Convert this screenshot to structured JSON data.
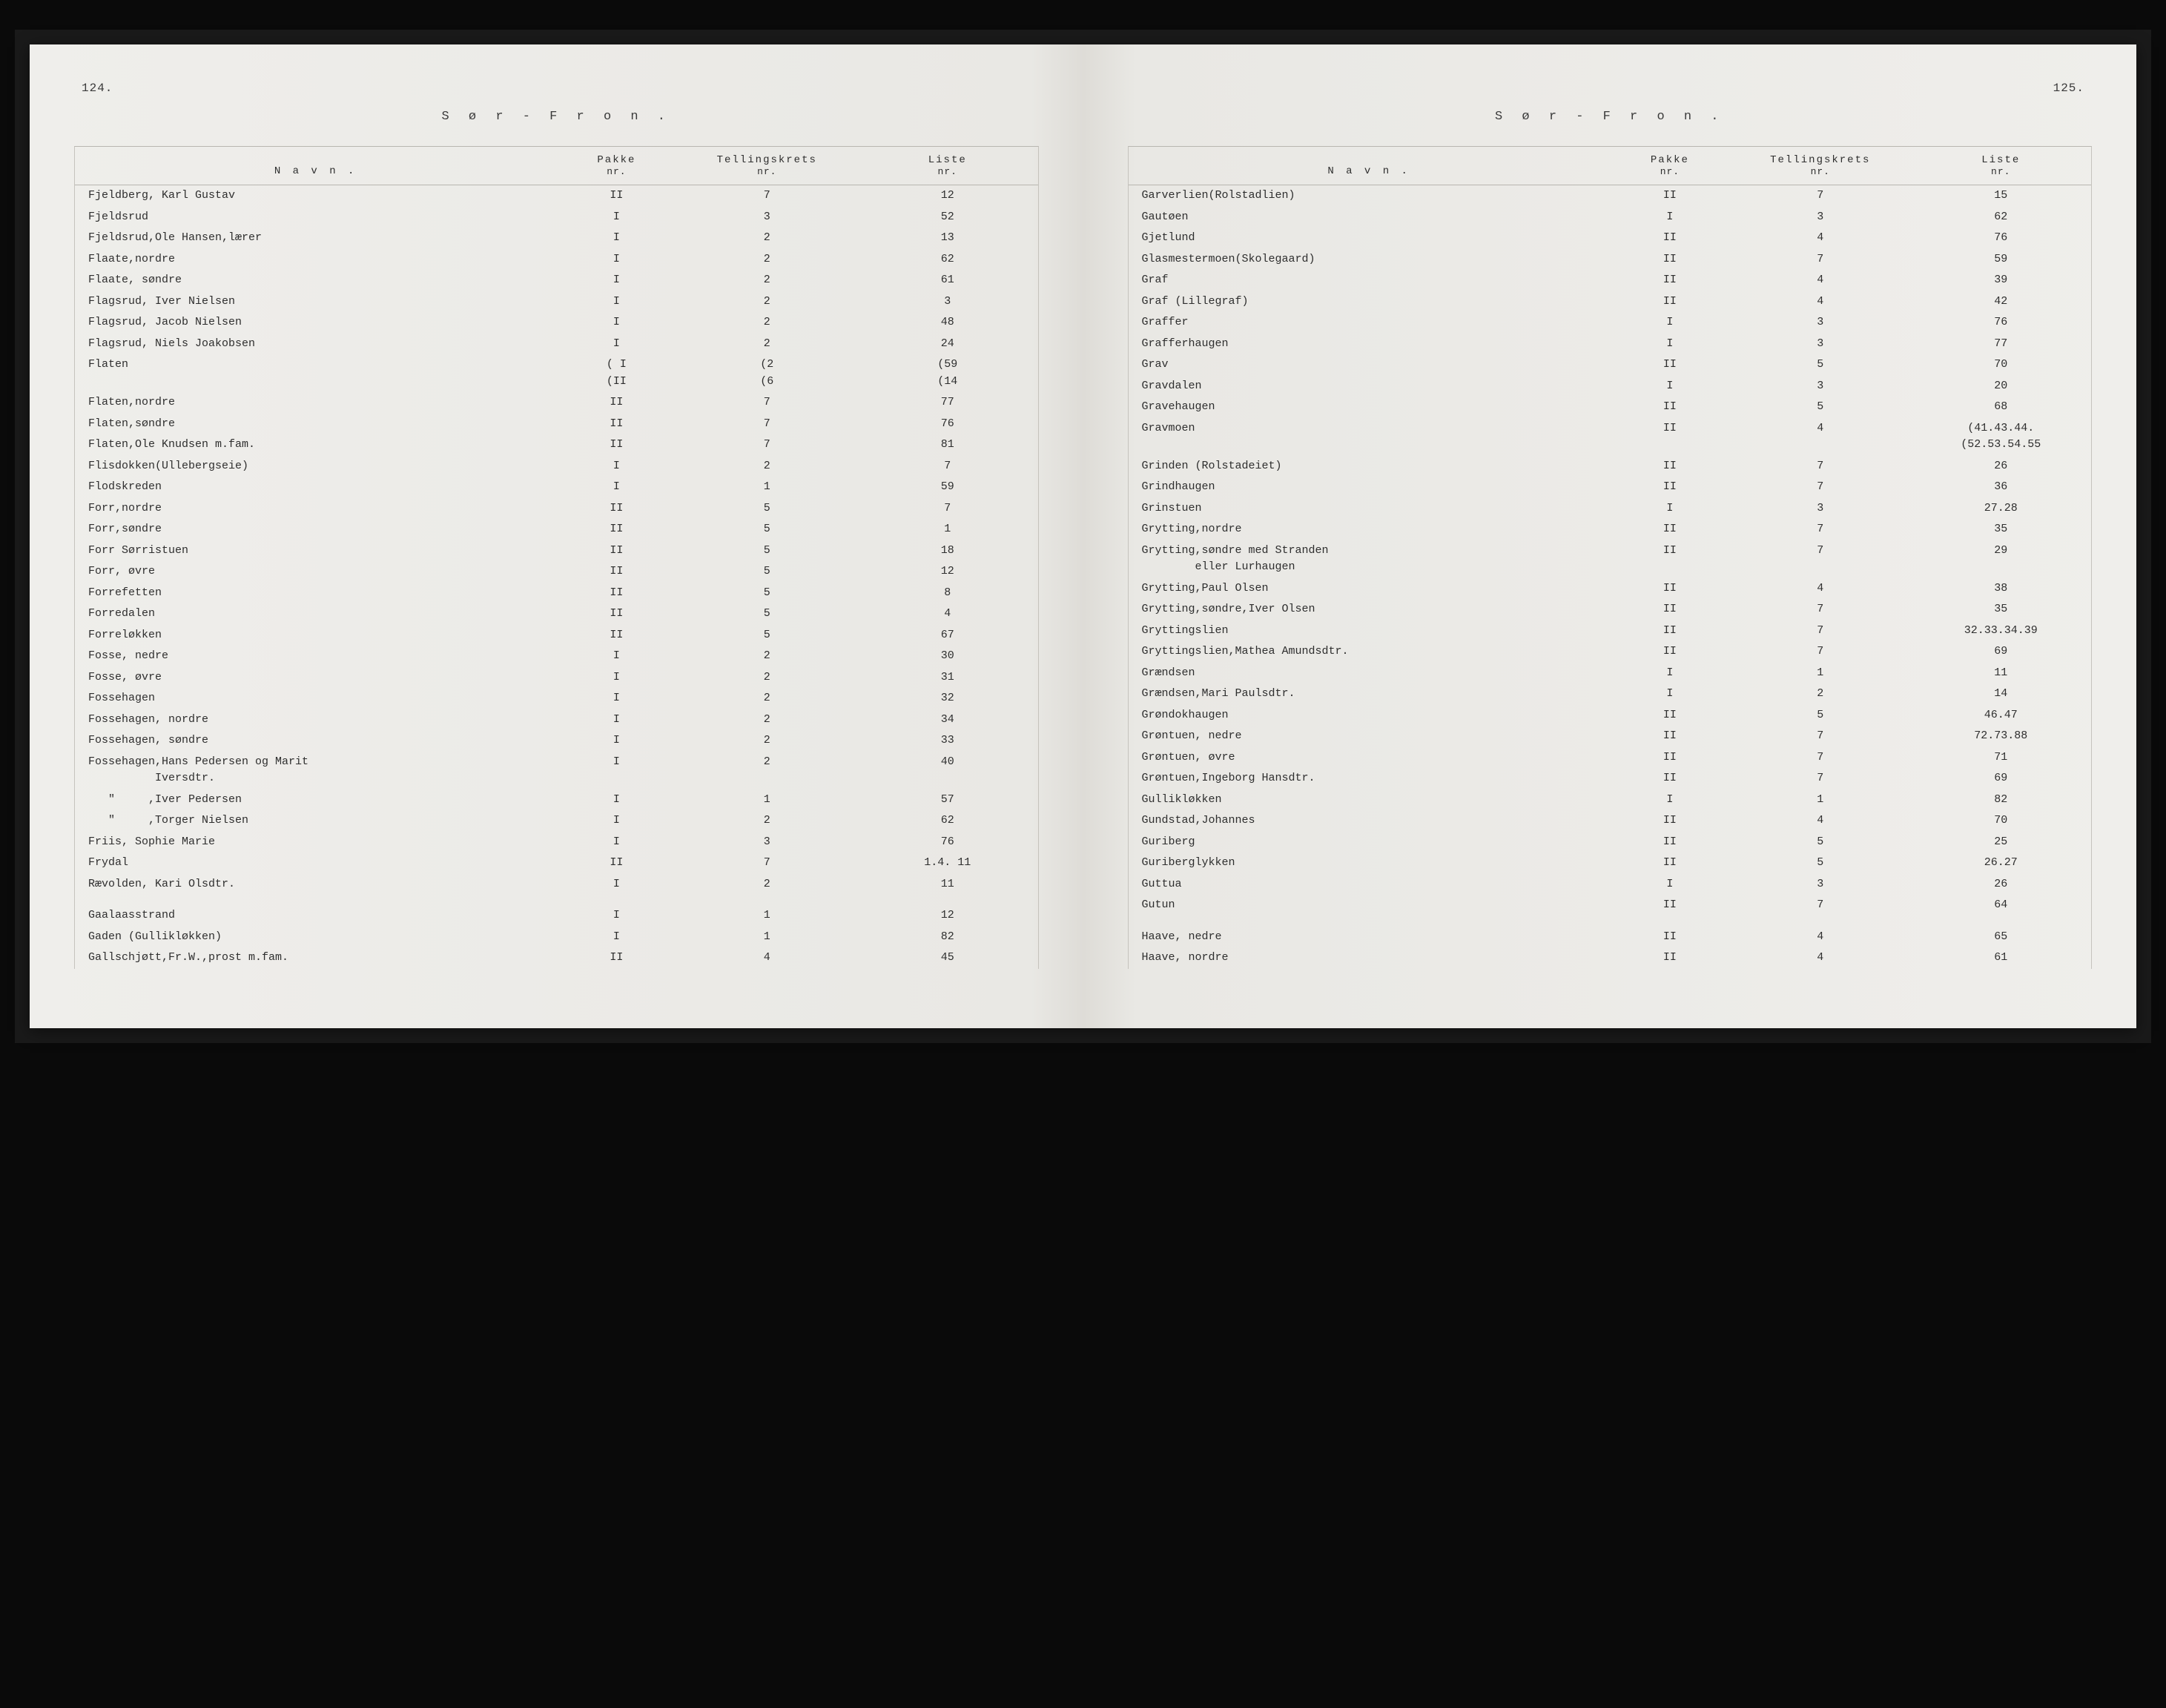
{
  "region_title": "S ø r - F r o n .",
  "columns": {
    "name": "N a v n .",
    "pakke": "Pakke",
    "pakke_sub": "nr.",
    "krets": "Tellingskrets",
    "krets_sub": "nr.",
    "liste": "Liste",
    "liste_sub": "nr."
  },
  "left": {
    "page_number": "124.",
    "rows": [
      {
        "name": "Fjeldberg, Karl Gustav",
        "pakke": "II",
        "krets": "7",
        "liste": "12"
      },
      {
        "name": "Fjeldsrud",
        "pakke": "I",
        "krets": "3",
        "liste": "52"
      },
      {
        "name": "Fjeldsrud,Ole Hansen,lærer",
        "pakke": "I",
        "krets": "2",
        "liste": "13"
      },
      {
        "name": "Flaate,nordre",
        "pakke": "I",
        "krets": "2",
        "liste": "62"
      },
      {
        "name": "Flaate, søndre",
        "pakke": "I",
        "krets": "2",
        "liste": "61"
      },
      {
        "name": "Flagsrud, Iver Nielsen",
        "pakke": "I",
        "krets": "2",
        "liste": "3"
      },
      {
        "name": "Flagsrud, Jacob Nielsen",
        "pakke": "I",
        "krets": "2",
        "liste": "48"
      },
      {
        "name": "Flagsrud, Niels Joakobsen",
        "pakke": "I",
        "krets": "2",
        "liste": "24"
      },
      {
        "name": "Flaten",
        "pakke": "( I\n(II",
        "krets": "(2\n(6",
        "liste": "(59\n(14"
      },
      {
        "name": "Flaten,nordre",
        "pakke": "II",
        "krets": "7",
        "liste": "77"
      },
      {
        "name": "Flaten,søndre",
        "pakke": "II",
        "krets": "7",
        "liste": "76"
      },
      {
        "name": "Flaten,Ole Knudsen m.fam.",
        "pakke": "II",
        "krets": "7",
        "liste": "81"
      },
      {
        "name": "Flisdokken(Ullebergseie)",
        "pakke": "I",
        "krets": "2",
        "liste": "7"
      },
      {
        "name": "Flodskreden",
        "pakke": "I",
        "krets": "1",
        "liste": "59"
      },
      {
        "name": "Forr,nordre",
        "pakke": "II",
        "krets": "5",
        "liste": "7"
      },
      {
        "name": "Forr,søndre",
        "pakke": "II",
        "krets": "5",
        "liste": "1"
      },
      {
        "name": "Forr Sørristuen",
        "pakke": "II",
        "krets": "5",
        "liste": "18"
      },
      {
        "name": "Forr, øvre",
        "pakke": "II",
        "krets": "5",
        "liste": "12"
      },
      {
        "name": "Forrefetten",
        "pakke": "II",
        "krets": "5",
        "liste": "8"
      },
      {
        "name": "Forredalen",
        "pakke": "II",
        "krets": "5",
        "liste": "4"
      },
      {
        "name": "Forreløkken",
        "pakke": "II",
        "krets": "5",
        "liste": "67"
      },
      {
        "name": "Fosse, nedre",
        "pakke": "I",
        "krets": "2",
        "liste": "30"
      },
      {
        "name": "Fosse, øvre",
        "pakke": "I",
        "krets": "2",
        "liste": "31"
      },
      {
        "name": "Fossehagen",
        "pakke": "I",
        "krets": "2",
        "liste": "32"
      },
      {
        "name": "Fossehagen, nordre",
        "pakke": "I",
        "krets": "2",
        "liste": "34"
      },
      {
        "name": "Fossehagen, søndre",
        "pakke": "I",
        "krets": "2",
        "liste": "33"
      },
      {
        "name": "Fossehagen,Hans Pedersen og Marit\n          Iversdtr.",
        "pakke": "I",
        "krets": "2",
        "liste": "40"
      },
      {
        "name": "   \"     ,Iver Pedersen",
        "pakke": "I",
        "krets": "1",
        "liste": "57"
      },
      {
        "name": "   \"     ,Torger Nielsen",
        "pakke": "I",
        "krets": "2",
        "liste": "62"
      },
      {
        "name": "Friis, Sophie Marie",
        "pakke": "I",
        "krets": "3",
        "liste": "76"
      },
      {
        "name": "Frydal",
        "pakke": "II",
        "krets": "7",
        "liste": "1.4. 11"
      },
      {
        "name": "Rævolden, Kari Olsdtr.",
        "pakke": "I",
        "krets": "2",
        "liste": "11"
      },
      {
        "spacer": true
      },
      {
        "name": "Gaalaasstrand",
        "pakke": "I",
        "krets": "1",
        "liste": "12"
      },
      {
        "name": "Gaden (Gullikløkken)",
        "pakke": "I",
        "krets": "1",
        "liste": "82"
      },
      {
        "name": "Gallschjøtt,Fr.W.,prost m.fam.",
        "pakke": "II",
        "krets": "4",
        "liste": "45"
      }
    ]
  },
  "right": {
    "page_number": "125.",
    "rows": [
      {
        "name": "Garverlien(Rolstadlien)",
        "pakke": "II",
        "krets": "7",
        "liste": "15"
      },
      {
        "name": "Gautøen",
        "pakke": "I",
        "krets": "3",
        "liste": "62"
      },
      {
        "name": "Gjetlund",
        "pakke": "II",
        "krets": "4",
        "liste": "76"
      },
      {
        "name": "Glasmestermoen(Skolegaard)",
        "pakke": "II",
        "krets": "7",
        "liste": "59"
      },
      {
        "name": "Graf",
        "pakke": "II",
        "krets": "4",
        "liste": "39"
      },
      {
        "name": "Graf (Lillegraf)",
        "pakke": "II",
        "krets": "4",
        "liste": "42"
      },
      {
        "name": "Graffer",
        "pakke": "I",
        "krets": "3",
        "liste": "76"
      },
      {
        "name": "Grafferhaugen",
        "pakke": "I",
        "krets": "3",
        "liste": "77"
      },
      {
        "name": "Grav",
        "pakke": "II",
        "krets": "5",
        "liste": "70"
      },
      {
        "name": "Gravdalen",
        "pakke": "I",
        "krets": "3",
        "liste": "20"
      },
      {
        "name": "Gravehaugen",
        "pakke": "II",
        "krets": "5",
        "liste": "68"
      },
      {
        "name": "Gravmoen",
        "pakke": "II",
        "krets": "4",
        "liste": "(41.43.44.\n(52.53.54.55"
      },
      {
        "name": "Grinden (Rolstadeiet)",
        "pakke": "II",
        "krets": "7",
        "liste": "26"
      },
      {
        "name": "Grindhaugen",
        "pakke": "II",
        "krets": "7",
        "liste": "36"
      },
      {
        "name": "Grinstuen",
        "pakke": "I",
        "krets": "3",
        "liste": "27.28"
      },
      {
        "name": "Grytting,nordre",
        "pakke": "II",
        "krets": "7",
        "liste": "35"
      },
      {
        "name": "Grytting,søndre med Stranden\n        eller Lurhaugen",
        "pakke": "II",
        "krets": "7",
        "liste": "29"
      },
      {
        "name": "Grytting,Paul Olsen",
        "pakke": "II",
        "krets": "4",
        "liste": "38"
      },
      {
        "name": "Grytting,søndre,Iver Olsen",
        "pakke": "II",
        "krets": "7",
        "liste": "35"
      },
      {
        "name": "Gryttingslien",
        "pakke": "II",
        "krets": "7",
        "liste": "32.33.34.39"
      },
      {
        "name": "Gryttingslien,Mathea Amundsdtr.",
        "pakke": "II",
        "krets": "7",
        "liste": "69"
      },
      {
        "name": "Grændsen",
        "pakke": "I",
        "krets": "1",
        "liste": "11"
      },
      {
        "name": "Grændsen,Mari Paulsdtr.",
        "pakke": "I",
        "krets": "2",
        "liste": "14"
      },
      {
        "name": "Grøndokhaugen",
        "pakke": "II",
        "krets": "5",
        "liste": "46.47"
      },
      {
        "name": "Grøntuen, nedre",
        "pakke": "II",
        "krets": "7",
        "liste": "72.73.88"
      },
      {
        "name": "Grøntuen, øvre",
        "pakke": "II",
        "krets": "7",
        "liste": "71"
      },
      {
        "name": "Grøntuen,Ingeborg Hansdtr.",
        "pakke": "II",
        "krets": "7",
        "liste": "69"
      },
      {
        "name": "Gullikløkken",
        "pakke": "I",
        "krets": "1",
        "liste": "82"
      },
      {
        "name": "Gundstad,Johannes",
        "pakke": "II",
        "krets": "4",
        "liste": "70"
      },
      {
        "name": "Guriberg",
        "pakke": "II",
        "krets": "5",
        "liste": "25"
      },
      {
        "name": "Guriberglykken",
        "pakke": "II",
        "krets": "5",
        "liste": "26.27"
      },
      {
        "name": "Guttua",
        "pakke": "I",
        "krets": "3",
        "liste": "26"
      },
      {
        "name": "Gutun",
        "pakke": "II",
        "krets": "7",
        "liste": "64"
      },
      {
        "spacer": true
      },
      {
        "name": "Haave, nedre",
        "pakke": "II",
        "krets": "4",
        "liste": "65"
      },
      {
        "name": "Haave, nordre",
        "pakke": "II",
        "krets": "4",
        "liste": "61"
      }
    ]
  }
}
